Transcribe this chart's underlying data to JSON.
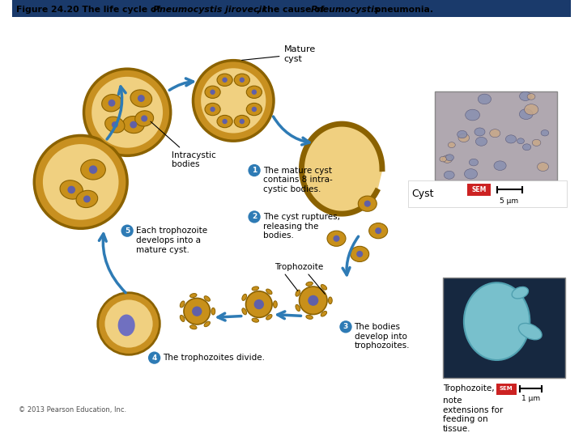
{
  "title_part1": "Figure 24.20 The life cycle of ",
  "title_italic1": "Pneumocystis jirovecii",
  "title_part2": ", the cause of ",
  "title_italic2": "Pneumocystis",
  "title_part3": " pneumonia.",
  "copyright": "© 2013 Pearson Education, Inc.",
  "bg_color": "#ffffff",
  "header_color": "#1a3a6b",
  "arrow_color": "#2E7BB5",
  "step_circle_color": "#2E7BB5",
  "cyst_outer": "#8B6200",
  "cyst_fill": "#F0D080",
  "cyst_ring": "#C89020",
  "body_color": "#C8901A",
  "nucleus_color": "#6060A8",
  "sem_label": "SEM",
  "scale1": "5 μm",
  "scale2": "1 μm",
  "label_mature": "Mature\ncyst",
  "label_intracystic": "Intracystic\nbodies",
  "label_cyst": "Cyst",
  "label_trophozoite": "Trophozoite",
  "step1": "The mature cyst\ncontains 8 intra-\ncystic bodies.",
  "step2": "The cyst ruptures,\nreleasing the\nbodies.",
  "step3": "The bodies\ndevelop into\ntrophozoites.",
  "step4": "The trophozoites divide.",
  "step5": "Each trophozoite\ndevelops into a\nmature cyst.",
  "troph_caption1": "Trophozoite, ",
  "troph_caption2": "note\nextensions for\nfeeding on\ntissue."
}
